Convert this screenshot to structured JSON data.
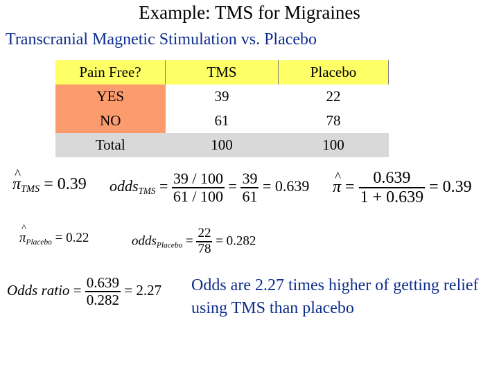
{
  "title": "Example: TMS for Migraines",
  "subtitle": "Transcranial Magnetic Stimulation vs. Placebo",
  "table": {
    "headers": [
      "Pain Free?",
      "TMS",
      "Placebo"
    ],
    "rows": [
      [
        "YES",
        "39",
        "22"
      ],
      [
        "NO",
        "61",
        "78"
      ],
      [
        "Total",
        "100",
        "100"
      ]
    ]
  },
  "equations": {
    "pi_tms": {
      "symbol": "π",
      "sub": "TMS",
      "value": "= 0.39"
    },
    "odds_tms": {
      "label": "odds",
      "sub": "TMS",
      "eq": "=",
      "num1": "39 / 100",
      "den1": "61 / 100",
      "num2": "39",
      "den2": "61",
      "result": "= 0.639"
    },
    "pi_back": {
      "symbol": "π",
      "eq": "=",
      "num": "0.639",
      "den": "1 + 0.639",
      "result": "= 0.39"
    },
    "pi_placebo": {
      "symbol": "π",
      "sub": "Placebo",
      "value": "= 0.22"
    },
    "odds_placebo": {
      "label": "odds",
      "sub": "Placebo",
      "eq": "=",
      "num": "22",
      "den": "78",
      "result": "= 0.282"
    },
    "odds_ratio": {
      "label": "Odds ratio",
      "eq": "=",
      "num": "0.639",
      "den": "0.282",
      "result": "= 2.27"
    }
  },
  "conclusion": "Odds are 2.27 times higher of getting relief using TMS than placebo",
  "colors": {
    "header_fill": "#ffff66",
    "row_fill": "#fb9b6e",
    "total_fill": "#d9d9d9",
    "accent_text": "#0d2c8c"
  }
}
